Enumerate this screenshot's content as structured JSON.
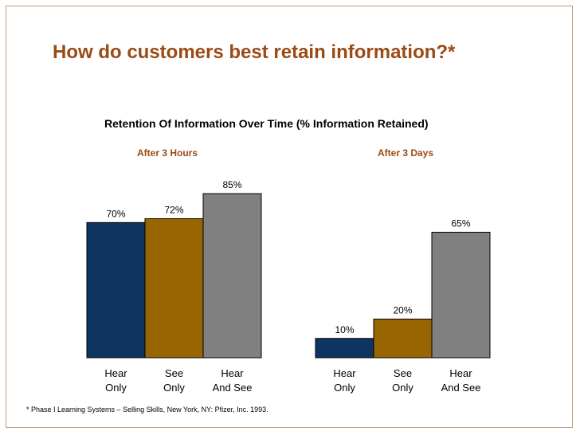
{
  "page": {
    "title": "How do customers best retain information?*",
    "footnote": "* Phase I Learning Systems – Selling Skills, New York, NY: Pfizer, Inc. 1993."
  },
  "colors": {
    "title": "#9a4a14",
    "subtitle_accent": "#9a4a14",
    "border": "#c49a6c",
    "hear_only": "#0e3462",
    "see_only": "#986600",
    "hear_and_see": "#808080"
  },
  "chart_data": {
    "type": "bar",
    "title": "Retention Of Information Over Time (% Information Retained)",
    "ylim": [
      0,
      100
    ],
    "grid": false,
    "categories": [
      [
        "Hear",
        "Only"
      ],
      [
        "See",
        "Only"
      ],
      [
        "Hear",
        "And See"
      ]
    ],
    "panels": [
      {
        "name": "After 3 Hours",
        "values": [
          70,
          72,
          85
        ],
        "labels": [
          "70%",
          "72%",
          "85%"
        ]
      },
      {
        "name": "After 3 Days",
        "values": [
          10,
          20,
          65
        ],
        "labels": [
          "10%",
          "20%",
          "65%"
        ]
      }
    ]
  }
}
